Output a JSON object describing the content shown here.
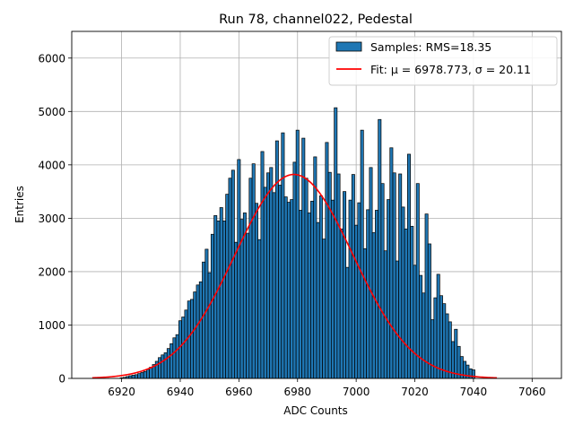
{
  "chart_data": {
    "type": "bar",
    "title": "Run 78, channel022, Pedestal",
    "xlabel": "ADC Counts",
    "ylabel": "Entries",
    "xlim": [
      6903,
      7070
    ],
    "ylim": [
      0,
      6500
    ],
    "xticks": [
      6920,
      6940,
      6960,
      6980,
      7000,
      7020,
      7040,
      7060
    ],
    "yticks": [
      0,
      1000,
      2000,
      3000,
      4000,
      5000,
      6000
    ],
    "grid": true,
    "legend_position": "top-right",
    "bin_width": 1,
    "bar_color": "#1f77b4",
    "fit_color": "#ff0000",
    "histogram": {
      "name": "Samples: RMS=18.35",
      "x": [
        6920,
        6921,
        6922,
        6923,
        6924,
        6925,
        6926,
        6927,
        6928,
        6929,
        6930,
        6931,
        6932,
        6933,
        6934,
        6935,
        6936,
        6937,
        6938,
        6939,
        6940,
        6941,
        6942,
        6943,
        6944,
        6945,
        6946,
        6947,
        6948,
        6949,
        6950,
        6951,
        6952,
        6953,
        6954,
        6955,
        6956,
        6957,
        6958,
        6959,
        6960,
        6961,
        6962,
        6963,
        6964,
        6965,
        6966,
        6967,
        6968,
        6969,
        6970,
        6971,
        6972,
        6973,
        6974,
        6975,
        6976,
        6977,
        6978,
        6979,
        6980,
        6981,
        6982,
        6983,
        6984,
        6985,
        6986,
        6987,
        6988,
        6989,
        6990,
        6991,
        6992,
        6993,
        6994,
        6995,
        6996,
        6997,
        6998,
        6999,
        7000,
        7001,
        7002,
        7003,
        7004,
        7005,
        7006,
        7007,
        7008,
        7009,
        7010,
        7011,
        7012,
        7013,
        7014,
        7015,
        7016,
        7017,
        7018,
        7019,
        7020,
        7021,
        7022,
        7023,
        7024,
        7025,
        7026,
        7027,
        7028,
        7029,
        7030,
        7031,
        7032,
        7033,
        7034,
        7035,
        7036,
        7037,
        7038,
        7039,
        7040
      ],
      "values": [
        10,
        20,
        35,
        50,
        60,
        70,
        90,
        110,
        130,
        170,
        210,
        260,
        320,
        390,
        440,
        480,
        560,
        650,
        760,
        820,
        1080,
        1150,
        1280,
        1450,
        1480,
        1620,
        1750,
        1810,
        2180,
        2420,
        1980,
        2700,
        3050,
        2950,
        3200,
        2950,
        3450,
        3750,
        3900,
        2550,
        4100,
        2980,
        3100,
        2720,
        3750,
        4020,
        3280,
        2600,
        4250,
        3580,
        3850,
        3950,
        3480,
        4450,
        3620,
        4600,
        3400,
        3300,
        3350,
        4050,
        4650,
        3150,
        4500,
        3750,
        3100,
        3320,
        4150,
        2920,
        3420,
        2610,
        4420,
        3860,
        3340,
        5070,
        3830,
        2800,
        3500,
        2080,
        3340,
        3820,
        2870,
        3290,
        4650,
        2430,
        3160,
        3950,
        2730,
        3150,
        4850,
        3650,
        2390,
        3350,
        4320,
        3850,
        2200,
        3830,
        3210,
        2800,
        4200,
        2850,
        2120,
        3650,
        1930,
        1600,
        3080,
        2520,
        1100,
        1510,
        1950,
        1550,
        1400,
        1210,
        1060,
        690,
        920,
        600,
        410,
        320,
        250,
        180,
        160
      ],
      "labels": []
    },
    "fit": {
      "name": "Fit: μ = 6978.773, σ = 20.11",
      "mu": 6978.773,
      "sigma": 20.11,
      "amplitude": 3820,
      "x_range": [
        6910,
        7048
      ]
    }
  }
}
